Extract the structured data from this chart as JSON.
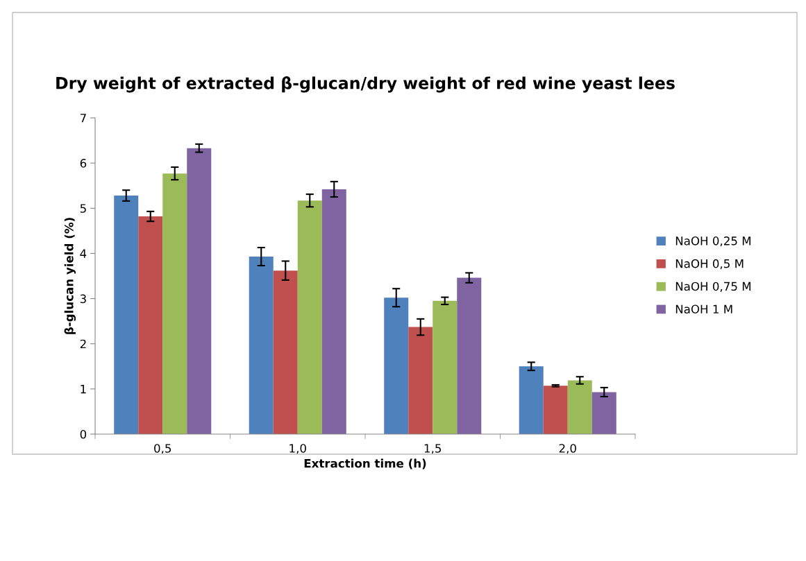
{
  "chart_data": {
    "type": "bar",
    "title": "Dry weight of extracted β-glucan/dry weight of red wine yeast lees",
    "xlabel": "Extraction time (h)",
    "ylabel": "β-glucan yield (%)",
    "categories": [
      "0,5",
      "1,0",
      "1,5",
      "2,0"
    ],
    "series": [
      {
        "name": "NaOH 0,25 M",
        "color": "#4f81bd",
        "values": [
          5.28,
          3.93,
          3.02,
          1.5
        ],
        "errors": [
          0.12,
          0.2,
          0.2,
          0.09
        ]
      },
      {
        "name": "NaOH 0,5 M",
        "color": "#c0504d",
        "values": [
          4.82,
          3.62,
          2.37,
          1.07
        ],
        "errors": [
          0.11,
          0.21,
          0.18,
          0.02
        ]
      },
      {
        "name": "NaOH 0,75 M",
        "color": "#9bbb59",
        "values": [
          5.77,
          5.17,
          2.95,
          1.19
        ],
        "errors": [
          0.14,
          0.14,
          0.08,
          0.08
        ]
      },
      {
        "name": "NaOH 1 M",
        "color": "#8064a2",
        "values": [
          6.33,
          5.42,
          3.46,
          0.93
        ],
        "errors": [
          0.09,
          0.17,
          0.11,
          0.1
        ]
      }
    ],
    "ylim": [
      0,
      7
    ],
    "yticks": [
      0,
      1,
      2,
      3,
      4,
      5,
      6,
      7
    ],
    "grid": false,
    "legend": "right"
  }
}
